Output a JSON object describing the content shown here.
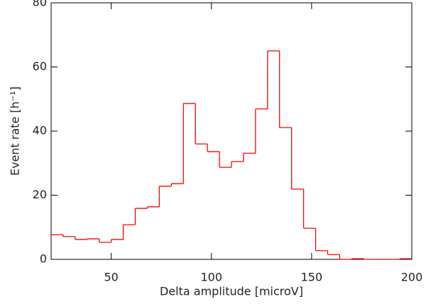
{
  "chart_data": {
    "type": "histogram",
    "x_label": "Delta amplitude [microV]",
    "y_label": "Event rate [h⁻¹]",
    "color": "#ff0000",
    "bins": [
      20,
      26,
      32,
      38,
      44,
      50,
      56,
      62,
      68,
      74,
      80,
      86,
      92,
      98,
      104,
      110,
      116,
      122,
      128,
      134,
      140,
      146,
      152,
      158,
      164,
      170,
      176,
      182,
      188,
      194,
      200
    ],
    "values": [
      7.7,
      7.1,
      6.2,
      6.4,
      5.3,
      6.2,
      10.8,
      15.9,
      16.4,
      22.8,
      23.6,
      48.6,
      36,
      33.6,
      28.7,
      30.5,
      33.1,
      46.9,
      65,
      41.1,
      21.9,
      9.7,
      2.7,
      1.5,
      0,
      0.2,
      0,
      0,
      0,
      0.2
    ],
    "xlim": [
      20,
      200
    ],
    "xticks": [
      50,
      100,
      150,
      200
    ],
    "ylim": [
      0,
      80
    ],
    "yticks": [
      0,
      20,
      40,
      60,
      80
    ]
  }
}
